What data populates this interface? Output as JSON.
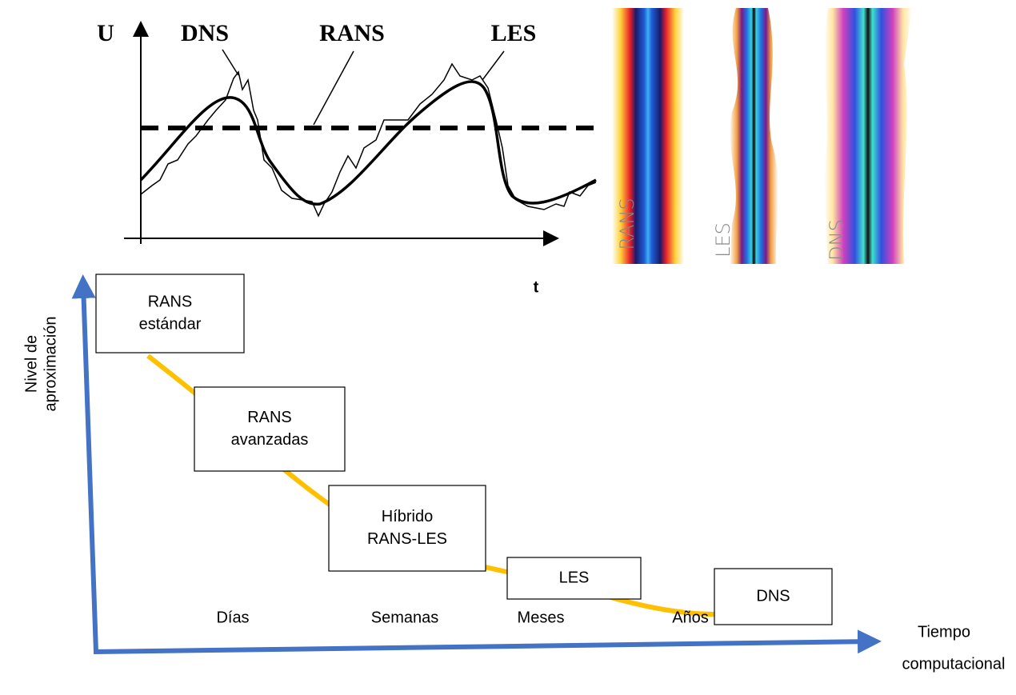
{
  "signal_plot": {
    "y_label": "U",
    "x_label": "t",
    "curve_labels": [
      "DNS",
      "RANS",
      "LES"
    ]
  },
  "flow_images": {
    "labels": [
      "RANS",
      "LES",
      "DNS"
    ]
  },
  "axes": {
    "y_label": [
      "Nivel de",
      "aproximación"
    ],
    "x_label": [
      "Tiempo",
      "computacional"
    ]
  },
  "nodes": [
    {
      "label": [
        "RANS",
        "estándar"
      ]
    },
    {
      "label": [
        "RANS",
        "avanzadas"
      ]
    },
    {
      "label": [
        "Híbrido",
        "RANS-LES"
      ]
    },
    {
      "label": [
        "LES"
      ]
    },
    {
      "label": [
        "DNS"
      ]
    }
  ],
  "time_labels": [
    "Días",
    "Semanas",
    "Meses",
    "Años"
  ]
}
